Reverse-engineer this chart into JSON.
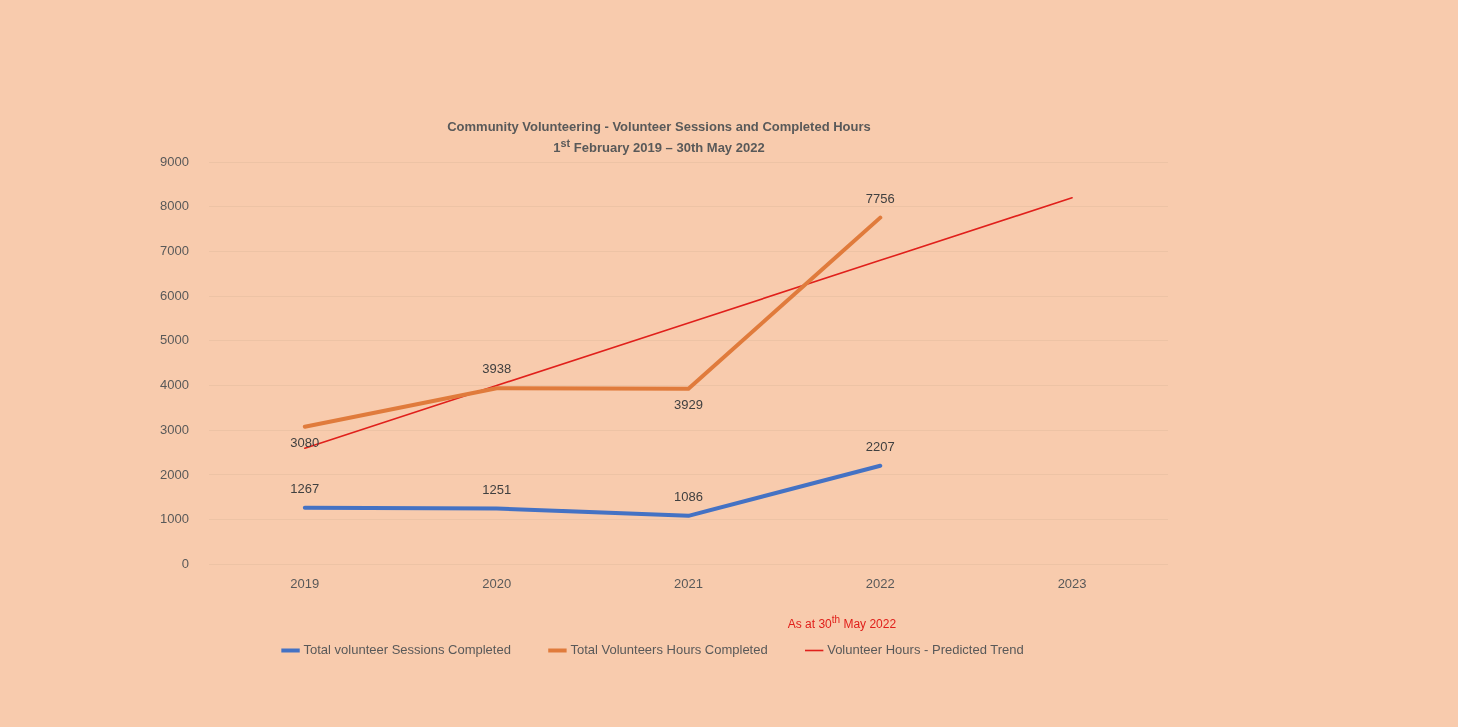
{
  "chart_data": {
    "type": "line",
    "title": "Community Volunteering  - Volunteer Sessions and Completed Hours",
    "subtitle": "1$^{st}$ February 2019 – 30th May 2022",
    "categories": [
      "2019",
      "2020",
      "2021",
      "2022",
      "2023"
    ],
    "series": [
      {
        "name": "Total volunteer Sessions Completed",
        "color": "#4472c4",
        "values": [
          1267,
          1251,
          1086,
          2207,
          null
        ],
        "value_labels": [
          "1267",
          "1251",
          "1086",
          "2207",
          null
        ]
      },
      {
        "name": "Total Volunteers Hours Completed",
        "color": "#e07b3c",
        "values": [
          3080,
          3938,
          3929,
          7756,
          null
        ],
        "value_labels": [
          "3080",
          "3938",
          "3929",
          "7756",
          null
        ]
      },
      {
        "name": "Volunteer Hours - Predicted Trend",
        "color": "#e0201b",
        "values": [
          2600,
          4000,
          5400,
          6800,
          8200
        ]
      }
    ],
    "ylim": [
      0,
      9000
    ],
    "yticks": [
      0,
      1000,
      2000,
      3000,
      4000,
      5000,
      6000,
      7000,
      8000,
      9000
    ],
    "grid": "y",
    "legend": "bottom",
    "marker": "none",
    "line_style": "solid",
    "annotations": [
      "As at 30$^{th}$ May 2022"
    ]
  }
}
